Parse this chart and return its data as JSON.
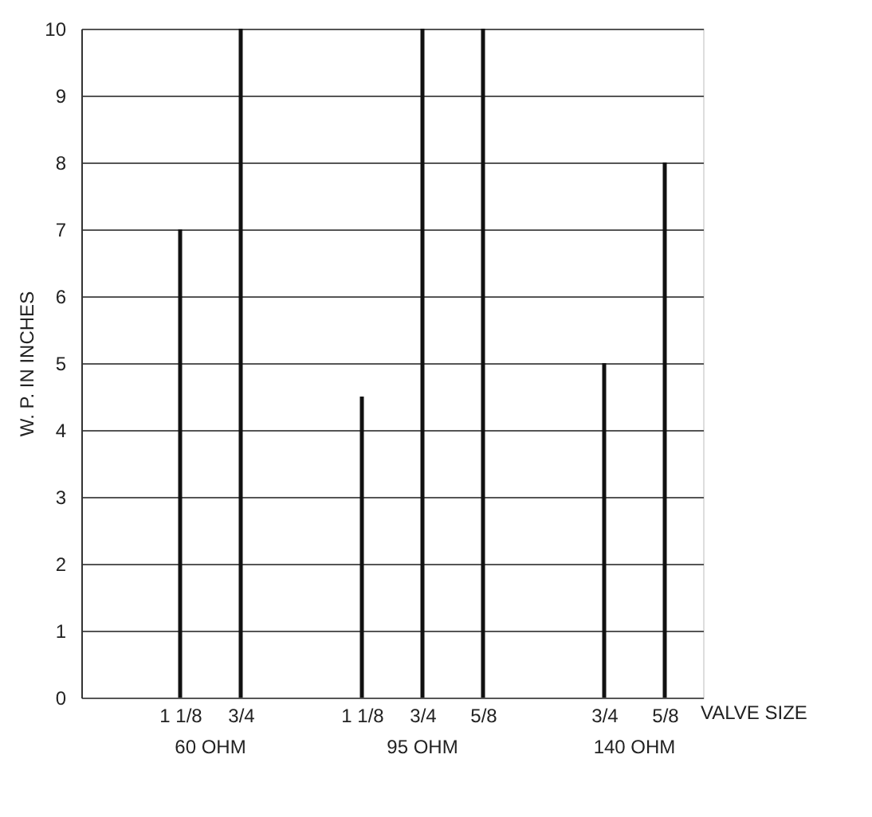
{
  "chart_data": {
    "type": "bar",
    "ylabel": "W. P. IN INCHES",
    "xlabel": "VALVE SIZE",
    "categories": [
      null,
      "1 1/8",
      "3/4",
      null,
      "1 1/8",
      "3/4",
      "5/8",
      null,
      "3/4",
      "5/8"
    ],
    "values": [
      null,
      7,
      10,
      null,
      4.5,
      10,
      10,
      null,
      5,
      8
    ],
    "color": "#111111",
    "annotations": [
      "60 OHM",
      "95 OHM",
      "140 OHM"
    ],
    "ylim": [
      0,
      10
    ],
    "yticks": [
      0,
      1,
      2,
      3,
      4,
      5,
      6,
      7,
      8,
      9,
      10
    ],
    "grid": "y"
  }
}
